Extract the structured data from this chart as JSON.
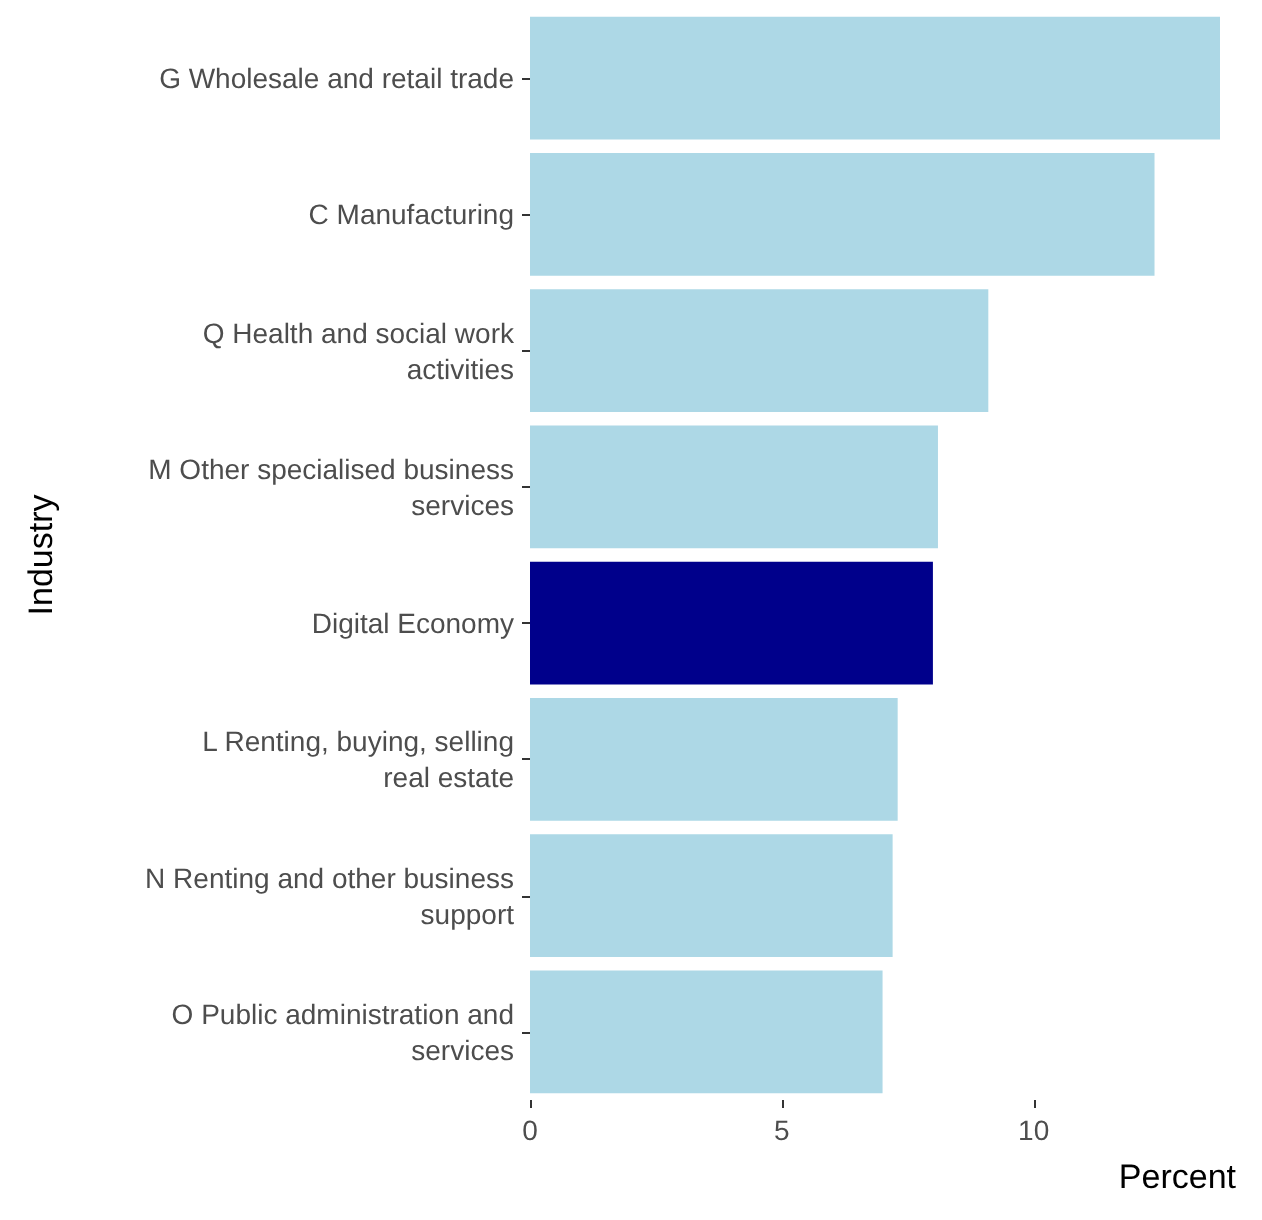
{
  "chart_data": {
    "type": "bar",
    "orientation": "horizontal",
    "xlabel": "Percent",
    "ylabel": "Industry",
    "categories": [
      "G Wholesale and retail trade",
      "C Manufacturing",
      "Q Health and social work\nactivities",
      "M Other specialised business\nservices",
      "Digital Economy",
      "L Renting, buying, selling\nreal estate",
      "N Renting and other business\nsupport",
      "O Public administration and\nservices"
    ],
    "values": [
      13.7,
      12.4,
      9.1,
      8.1,
      8.0,
      7.3,
      7.2,
      7.0
    ],
    "colors": [
      "#add8e6",
      "#add8e6",
      "#add8e6",
      "#add8e6",
      "#00008b",
      "#add8e6",
      "#add8e6",
      "#add8e6"
    ],
    "xlim": [
      0,
      13.7
    ],
    "xticks": [
      0,
      5,
      10
    ],
    "grid": false
  }
}
